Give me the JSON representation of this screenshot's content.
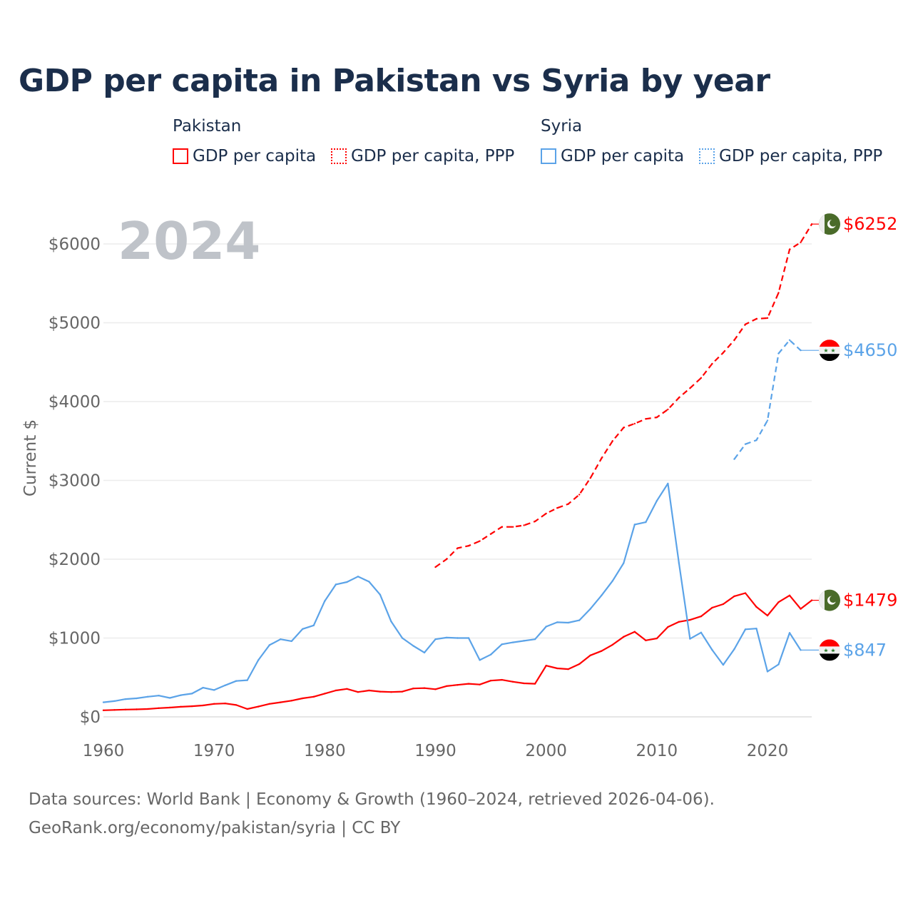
{
  "title": "GDP per capita in Pakistan vs Syria by year",
  "legend": {
    "groups": [
      {
        "name": "Pakistan",
        "items": [
          "GDP per capita",
          "GDP per capita, PPP"
        ],
        "color": "#ff0000"
      },
      {
        "name": "Syria",
        "items": [
          "GDP per capita",
          "GDP per capita, PPP"
        ],
        "color": "#5ba3e8"
      }
    ]
  },
  "footer": {
    "line1": "Data sources: World Bank | Economy & Growth (1960–2024, retrieved 2026-04-06).",
    "line2": "GeoRank.org/economy/pakistan/syria | CC BY"
  },
  "chart_data": {
    "type": "line",
    "title": "GDP per capita in Pakistan vs Syria by year",
    "year_label": "2024",
    "ylabel": "Current $",
    "xlabel": "",
    "ylim": [
      0,
      6500
    ],
    "xlim": [
      1960,
      2024
    ],
    "yticks": [
      0,
      1000,
      2000,
      3000,
      4000,
      5000,
      6000
    ],
    "ytick_labels": [
      "$0",
      "$1000",
      "$2000",
      "$3000",
      "$4000",
      "$5000",
      "$6000"
    ],
    "xticks": [
      1960,
      1970,
      1980,
      1990,
      2000,
      2010,
      2020
    ],
    "xtick_labels": [
      "1960",
      "1970",
      "1980",
      "1990",
      "2000",
      "2010",
      "2020"
    ],
    "grid": true,
    "series": [
      {
        "name": "Pakistan GDP per capita",
        "country": "Pakistan",
        "color": "#ff0000",
        "dash": false,
        "start": 1960,
        "end_label": "$1479",
        "flag": "pakistan-flag",
        "values": [
          83,
          88,
          92,
          95,
          100,
          110,
          118,
          128,
          135,
          145,
          165,
          170,
          150,
          100,
          130,
          165,
          185,
          205,
          235,
          255,
          295,
          335,
          355,
          315,
          335,
          320,
          315,
          320,
          360,
          365,
          350,
          390,
          405,
          420,
          410,
          460,
          470,
          445,
          425,
          420,
          650,
          615,
          605,
          670,
          780,
          835,
          915,
          1015,
          1080,
          970,
          995,
          1140,
          1205,
          1230,
          1275,
          1385,
          1430,
          1530,
          1570,
          1395,
          1285,
          1455,
          1540,
          1370,
          1479
        ]
      },
      {
        "name": "Pakistan GDP per capita, PPP",
        "country": "Pakistan",
        "color": "#ff0000",
        "dash": true,
        "start": 1990,
        "end_label": "$6252",
        "flag": "pakistan-flag",
        "values": [
          1900,
          2000,
          2140,
          2170,
          2230,
          2320,
          2410,
          2410,
          2430,
          2480,
          2580,
          2650,
          2700,
          2820,
          3030,
          3280,
          3500,
          3670,
          3720,
          3780,
          3800,
          3900,
          4050,
          4170,
          4300,
          4480,
          4620,
          4780,
          4980,
          5050,
          5060,
          5380,
          5930,
          6020,
          6252
        ]
      },
      {
        "name": "Syria GDP per capita",
        "country": "Syria",
        "color": "#5ba3e8",
        "dash": false,
        "start": 1960,
        "end_label": "$847",
        "flag": "syria-flag",
        "values": [
          185,
          200,
          225,
          235,
          255,
          270,
          240,
          275,
          295,
          370,
          340,
          400,
          455,
          465,
          720,
          910,
          985,
          960,
          1115,
          1160,
          1470,
          1680,
          1710,
          1780,
          1715,
          1550,
          1210,
          1000,
          900,
          815,
          985,
          1005,
          1000,
          1000,
          720,
          790,
          920,
          945,
          965,
          985,
          1145,
          1200,
          1195,
          1225,
          1370,
          1540,
          1725,
          1950,
          2440,
          2470,
          2740,
          2960,
          1950,
          990,
          1070,
          850,
          660,
          860,
          1110,
          1120,
          575,
          665,
          1065,
          847
        ]
      },
      {
        "name": "Syria GDP per capita, PPP",
        "country": "Syria",
        "color": "#5ba3e8",
        "dash": true,
        "start": 2017,
        "end_label": "$4650",
        "flag": "syria-flag",
        "values": [
          3270,
          3460,
          3510,
          3760,
          4610,
          4780,
          4650
        ]
      }
    ]
  }
}
